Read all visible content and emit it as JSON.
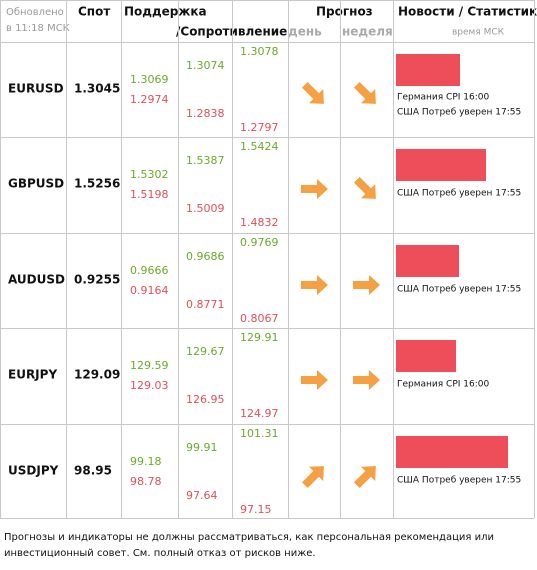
{
  "header": {
    "updated": [
      "Обновлено",
      "в 11:18 МСК"
    ],
    "spot": "Спот",
    "levels": [
      "Поддержка",
      "/Сопротивление"
    ],
    "forecast": "Прогноз",
    "day": "день",
    "week": "неделя",
    "news": "Новости / Статистика",
    "news_time": "время МСК"
  },
  "rows": [
    {
      "pair": "EURUSD",
      "spot": "1.3045",
      "levels": [
        [
          "1.3069",
          "1.2974"
        ],
        [
          "1.3074",
          "1.2838"
        ],
        [
          "1.3078",
          "1.2797"
        ]
      ],
      "news": [
        "Германия CPI 16:00",
        "США Потреб уверен 17:55"
      ]
    },
    {
      "pair": "GBPUSD",
      "spot": "1.5256",
      "levels": [
        [
          "1.5302",
          "1.5198"
        ],
        [
          "1.5387",
          "1.5009"
        ],
        [
          "1.5424",
          "1.4832"
        ]
      ],
      "news": [
        "США Потреб уверен 17:55"
      ]
    },
    {
      "pair": "AUDUSD",
      "spot": "0.9255",
      "levels": [
        [
          "0.9666",
          "0.9164"
        ],
        [
          "0.9686",
          "0.8771"
        ],
        [
          "0.9769",
          "0.8067"
        ]
      ],
      "news": [
        "США Потреб уверен 17:55"
      ]
    },
    {
      "pair": "EURJPY",
      "spot": "129.09",
      "levels": [
        [
          "129.59",
          "129.03"
        ],
        [
          "129.67",
          "126.95"
        ],
        [
          "129.91",
          "124.97"
        ]
      ],
      "news": [
        "Германия CPI 16:00"
      ]
    },
    {
      "pair": "USDJPY",
      "spot": "98.95",
      "levels": [
        [
          "99.18",
          "98.78"
        ],
        [
          "99.91",
          "97.64"
        ],
        [
          "101.31",
          "97.15"
        ]
      ],
      "news": [
        "США Потреб уверен 17:55"
      ]
    }
  ],
  "footer": [
    "Прогнозы и индикаторы не должны рассматриваться, как персональная рекомендация или",
    "инвестиционный совет. См. полный отказ от рисков ниже."
  ]
}
